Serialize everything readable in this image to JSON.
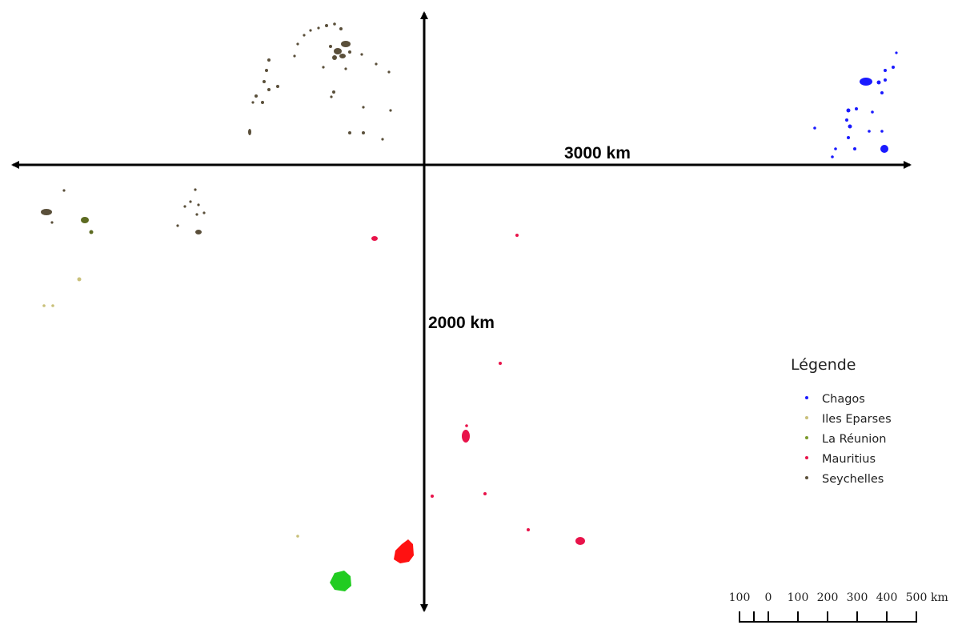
{
  "axes": {
    "horizontal_label": "3000 km",
    "vertical_label": "2000 km"
  },
  "legend": {
    "title": "Légende",
    "items": [
      {
        "label": "Chagos",
        "color": "#1a1aff"
      },
      {
        "label": "Iles Eparses",
        "color": "#c9c07a"
      },
      {
        "label": "La Réunion",
        "color": "#7a9a2a"
      },
      {
        "label": "Mauritius",
        "color": "#e8134a"
      },
      {
        "label": "Seychelles",
        "color": "#5a4f3a"
      }
    ]
  },
  "scale_bar": {
    "ticks": [
      "100",
      "0",
      "100",
      "200",
      "300",
      "400",
      "500"
    ],
    "unit": "km"
  },
  "highlight_colors": {
    "reunion_island": "#22cc22",
    "mauritius_island": "#ff1111"
  }
}
